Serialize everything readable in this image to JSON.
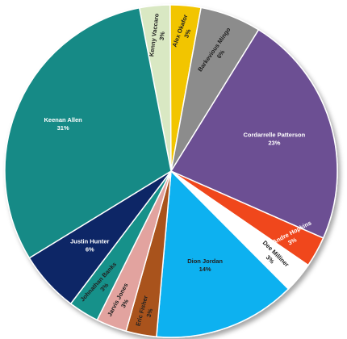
{
  "chart_data": {
    "type": "pie",
    "title": "",
    "legend": "none",
    "slices": [
      {
        "name": "Kenny Vaccaro",
        "label": "3%",
        "value": 3,
        "color": "#d9e8c3",
        "text_color": "#222222"
      },
      {
        "name": "Alex Okafor",
        "label": "3%",
        "value": 3,
        "color": "#f2c500",
        "text_color": "#222222"
      },
      {
        "name": "Barkevious Mingo",
        "label": "6%",
        "value": 6,
        "color": "#8c8c8c",
        "text_color": "#222222"
      },
      {
        "name": "Cordarrelle Patterson",
        "label": "23%",
        "value": 23,
        "color": "#6c4f93",
        "text_color": "#ffffff"
      },
      {
        "name": "DeAndre Hopkins",
        "label": "3%",
        "value": 3,
        "color": "#f0471c",
        "text_color": "#ffffff"
      },
      {
        "name": "Dee Milliner",
        "label": "3%",
        "value": 3,
        "color": "#ffffff",
        "text_color": "#222222"
      },
      {
        "name": "Dion Jordan",
        "label": "14%",
        "value": 14,
        "color": "#0fb1f0",
        "text_color": "#222222"
      },
      {
        "name": "Eric Fisher",
        "label": "3%",
        "value": 3,
        "color": "#a9521a",
        "text_color": "#222222"
      },
      {
        "name": "Jarvis Jones",
        "label": "3%",
        "value": 3,
        "color": "#e2a39f",
        "text_color": "#222222"
      },
      {
        "name": "Johnathan Banks",
        "label": "3%",
        "value": 3,
        "color": "#12918a",
        "text_color": "#222222"
      },
      {
        "name": "Justin Hunter",
        "label": "6%",
        "value": 6,
        "color": "#0e2766",
        "text_color": "#ffffff"
      },
      {
        "name": "Keenan Allen",
        "label": "31%",
        "value": 31,
        "color": "#138a86",
        "text_color": "#ffffff"
      }
    ]
  }
}
